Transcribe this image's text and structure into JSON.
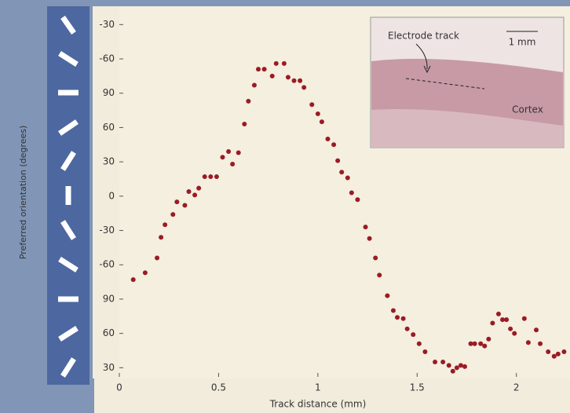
{
  "chart_data": {
    "type": "scatter",
    "y_label": "Preferred orientation (degrees)",
    "x_label": "Track distance (mm)",
    "color": "#9b1b25",
    "xlim": [
      0,
      2.27
    ],
    "xticks": [
      0,
      0.5,
      1,
      1.5,
      2
    ],
    "ylim": [
      22,
      346
    ],
    "yticks": [
      30,
      60,
      90,
      {
        "value": 120,
        "label": "-60"
      },
      {
        "value": 150,
        "label": "-30"
      },
      {
        "value": 180,
        "label": "0"
      },
      {
        "value": 210,
        "label": "30"
      },
      {
        "value": 240,
        "label": "60"
      },
      {
        "value": 270,
        "label": "90"
      },
      {
        "value": 300,
        "label": "-60"
      },
      {
        "value": 330,
        "label": "-30"
      }
    ],
    "inset": {
      "track_label": "Electrode track",
      "scale_label": "1 mm",
      "region_label": "Cortex"
    },
    "x": [
      0.07,
      0.13,
      0.19,
      0.21,
      0.23,
      0.27,
      0.29,
      0.33,
      0.35,
      0.38,
      0.4,
      0.43,
      0.46,
      0.49,
      0.52,
      0.55,
      0.57,
      0.6,
      0.63,
      0.65,
      0.68,
      0.7,
      0.73,
      0.77,
      0.79,
      0.83,
      0.85,
      0.88,
      0.91,
      0.93,
      0.97,
      1.0,
      1.02,
      1.05,
      1.08,
      1.1,
      1.12,
      1.15,
      1.17,
      1.2,
      1.24,
      1.26,
      1.29,
      1.31,
      1.35,
      1.38,
      1.4,
      1.43,
      1.45,
      1.48,
      1.51,
      1.54,
      1.59,
      1.63,
      1.66,
      1.68,
      1.7,
      1.72,
      1.74,
      1.77,
      1.79,
      1.82,
      1.84,
      1.86,
      1.88,
      1.91,
      1.93,
      1.95,
      1.97,
      1.99,
      2.04,
      2.06,
      2.1,
      2.12,
      2.16,
      2.19,
      2.21,
      2.24
    ],
    "values": [
      107,
      113,
      126,
      144,
      155,
      164,
      175,
      172,
      184,
      181,
      187,
      197,
      197,
      197,
      214,
      219,
      208,
      218,
      243,
      263,
      277,
      291,
      291,
      285,
      296,
      296,
      284,
      281,
      281,
      275,
      260,
      252,
      245,
      230,
      225,
      211,
      201,
      196,
      183,
      177,
      153,
      143,
      126,
      111,
      93,
      80,
      74,
      73,
      64,
      59,
      51,
      44,
      35,
      35,
      32,
      27,
      30,
      32,
      31,
      51,
      51,
      51,
      49,
      55,
      69,
      77,
      72,
      72,
      64,
      60,
      73,
      52,
      63,
      51,
      44,
      40,
      42,
      44
    ]
  }
}
